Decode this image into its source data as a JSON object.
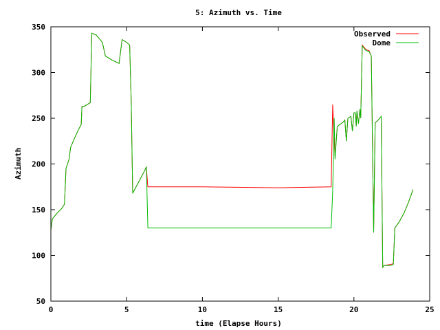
{
  "chart_data": {
    "type": "line",
    "title": "5: Azimuth vs. Time",
    "xlabel": "time (Elapse Hours)",
    "ylabel": "Azimuth",
    "xlim": [
      0,
      25
    ],
    "ylim": [
      50,
      350
    ],
    "xticks": [
      0,
      5,
      10,
      15,
      20,
      25
    ],
    "yticks": [
      50,
      100,
      150,
      200,
      250,
      300,
      350
    ],
    "grid": false,
    "legend_position": "top-right",
    "series": [
      {
        "name": "Observed",
        "color": "#ff0000",
        "points": [
          [
            0.0,
            128
          ],
          [
            0.1,
            140
          ],
          [
            0.4,
            146
          ],
          [
            0.7,
            151
          ],
          [
            0.9,
            156
          ],
          [
            1.0,
            195
          ],
          [
            1.2,
            205
          ],
          [
            1.3,
            218
          ],
          [
            1.5,
            226
          ],
          [
            1.8,
            237
          ],
          [
            2.0,
            243
          ],
          [
            2.05,
            263
          ],
          [
            2.2,
            263
          ],
          [
            2.5,
            266
          ],
          [
            2.6,
            267
          ],
          [
            2.7,
            343
          ],
          [
            3.0,
            341
          ],
          [
            3.4,
            333
          ],
          [
            3.6,
            318
          ],
          [
            4.0,
            314
          ],
          [
            4.5,
            310
          ],
          [
            4.7,
            336
          ],
          [
            5.0,
            333
          ],
          [
            5.2,
            330
          ],
          [
            5.3,
            270
          ],
          [
            5.4,
            168
          ],
          [
            6.2,
            193
          ],
          [
            6.3,
            197
          ],
          [
            6.35,
            185
          ],
          [
            6.4,
            175
          ],
          [
            10.0,
            175
          ],
          [
            15.0,
            174
          ],
          [
            18.5,
            175
          ],
          [
            18.6,
            265
          ],
          [
            18.7,
            226
          ],
          [
            18.75,
            208
          ],
          [
            18.9,
            241
          ],
          [
            19.3,
            246
          ],
          [
            19.4,
            248
          ],
          [
            19.5,
            225
          ],
          [
            19.6,
            250
          ],
          [
            19.8,
            252
          ],
          [
            19.9,
            236
          ],
          [
            20.0,
            256
          ],
          [
            20.1,
            256
          ],
          [
            20.15,
            241
          ],
          [
            20.2,
            258
          ],
          [
            20.3,
            244
          ],
          [
            20.4,
            260
          ],
          [
            20.45,
            250
          ],
          [
            20.55,
            330
          ],
          [
            20.8,
            325
          ],
          [
            21.0,
            324
          ],
          [
            21.15,
            318
          ],
          [
            21.3,
            125
          ],
          [
            21.4,
            245
          ],
          [
            21.6,
            248
          ],
          [
            21.8,
            252
          ],
          [
            21.9,
            87
          ],
          [
            22.0,
            89
          ],
          [
            22.4,
            90
          ],
          [
            22.6,
            91
          ],
          [
            22.7,
            130
          ],
          [
            23.0,
            137
          ],
          [
            23.3,
            146
          ],
          [
            23.6,
            158
          ],
          [
            23.9,
            172
          ]
        ]
      },
      {
        "name": "Dome",
        "color": "#00bb00",
        "points": [
          [
            0.0,
            128
          ],
          [
            0.1,
            140
          ],
          [
            0.4,
            146
          ],
          [
            0.7,
            151
          ],
          [
            0.9,
            156
          ],
          [
            1.0,
            195
          ],
          [
            1.2,
            205
          ],
          [
            1.3,
            218
          ],
          [
            1.5,
            226
          ],
          [
            1.8,
            237
          ],
          [
            2.0,
            243
          ],
          [
            2.05,
            263
          ],
          [
            2.2,
            263
          ],
          [
            2.5,
            266
          ],
          [
            2.6,
            267
          ],
          [
            2.7,
            343
          ],
          [
            3.0,
            341
          ],
          [
            3.4,
            333
          ],
          [
            3.6,
            318
          ],
          [
            4.0,
            314
          ],
          [
            4.5,
            310
          ],
          [
            4.7,
            336
          ],
          [
            5.0,
            333
          ],
          [
            5.2,
            330
          ],
          [
            5.3,
            270
          ],
          [
            5.4,
            168
          ],
          [
            6.2,
            193
          ],
          [
            6.3,
            197
          ],
          [
            6.4,
            130
          ],
          [
            10.0,
            130
          ],
          [
            15.0,
            130
          ],
          [
            18.5,
            130
          ],
          [
            18.6,
            170
          ],
          [
            18.7,
            250
          ],
          [
            18.75,
            205
          ],
          [
            18.9,
            241
          ],
          [
            19.3,
            246
          ],
          [
            19.4,
            248
          ],
          [
            19.5,
            225
          ],
          [
            19.6,
            250
          ],
          [
            19.8,
            252
          ],
          [
            19.9,
            236
          ],
          [
            20.0,
            256
          ],
          [
            20.1,
            256
          ],
          [
            20.15,
            241
          ],
          [
            20.2,
            258
          ],
          [
            20.3,
            244
          ],
          [
            20.4,
            260
          ],
          [
            20.45,
            250
          ],
          [
            20.55,
            329
          ],
          [
            20.8,
            324
          ],
          [
            21.0,
            323
          ],
          [
            21.15,
            318
          ],
          [
            21.3,
            125
          ],
          [
            21.4,
            245
          ],
          [
            21.6,
            248
          ],
          [
            21.8,
            252
          ],
          [
            21.9,
            87
          ],
          [
            22.0,
            89
          ],
          [
            22.4,
            89
          ],
          [
            22.6,
            90
          ],
          [
            22.7,
            130
          ],
          [
            23.0,
            137
          ],
          [
            23.3,
            146
          ],
          [
            23.6,
            158
          ],
          [
            23.9,
            172
          ]
        ]
      }
    ]
  }
}
